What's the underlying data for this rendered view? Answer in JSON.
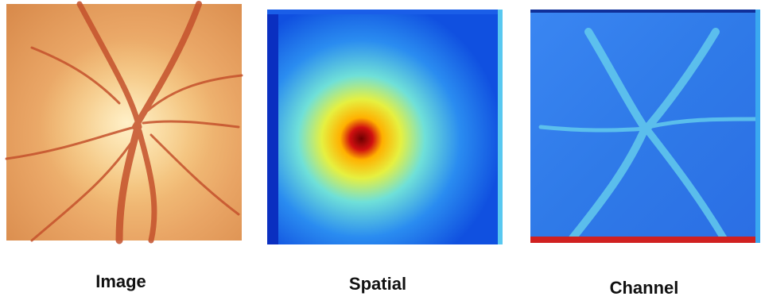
{
  "panels": [
    {
      "label": "Image"
    },
    {
      "label": "Spatial"
    },
    {
      "label": "Channel"
    }
  ]
}
